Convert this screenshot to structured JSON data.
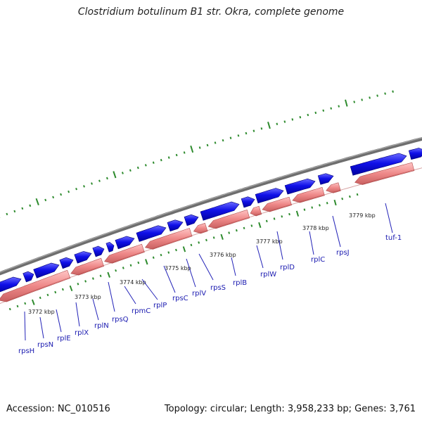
{
  "title": "Clostridium botulinum B1 str. Okra, complete genome",
  "footer": {
    "accession": "Accession: NC_010516",
    "topology": "Topology: circular; Length: 3,958,233 bp; Genes: 3,761"
  },
  "colors": {
    "backbone": "#7a7a7a",
    "forward_gene": "#1010e8",
    "reverse_gene": "#ee8888",
    "tick": "#2e8b2e",
    "label": "#1a1ab0",
    "leader": "#2323b8"
  },
  "scale_labels": [
    "3772 kbp",
    "3773 kbp",
    "3774 kbp",
    "3775 kbp",
    "3776 kbp",
    "3777 kbp",
    "3778 kbp",
    "3779 kbp"
  ],
  "genes": [
    {
      "name": "rpsH"
    },
    {
      "name": "rpsN"
    },
    {
      "name": "rplE"
    },
    {
      "name": "rplX"
    },
    {
      "name": "rplN"
    },
    {
      "name": "rpsQ"
    },
    {
      "name": "rpmC"
    },
    {
      "name": "rplP"
    },
    {
      "name": "rpsC"
    },
    {
      "name": "rplV"
    },
    {
      "name": "rpsS"
    },
    {
      "name": "rplB"
    },
    {
      "name": "rplW"
    },
    {
      "name": "rplD"
    },
    {
      "name": "rplC"
    },
    {
      "name": "rpsJ"
    },
    {
      "name": "tuf-1"
    }
  ]
}
